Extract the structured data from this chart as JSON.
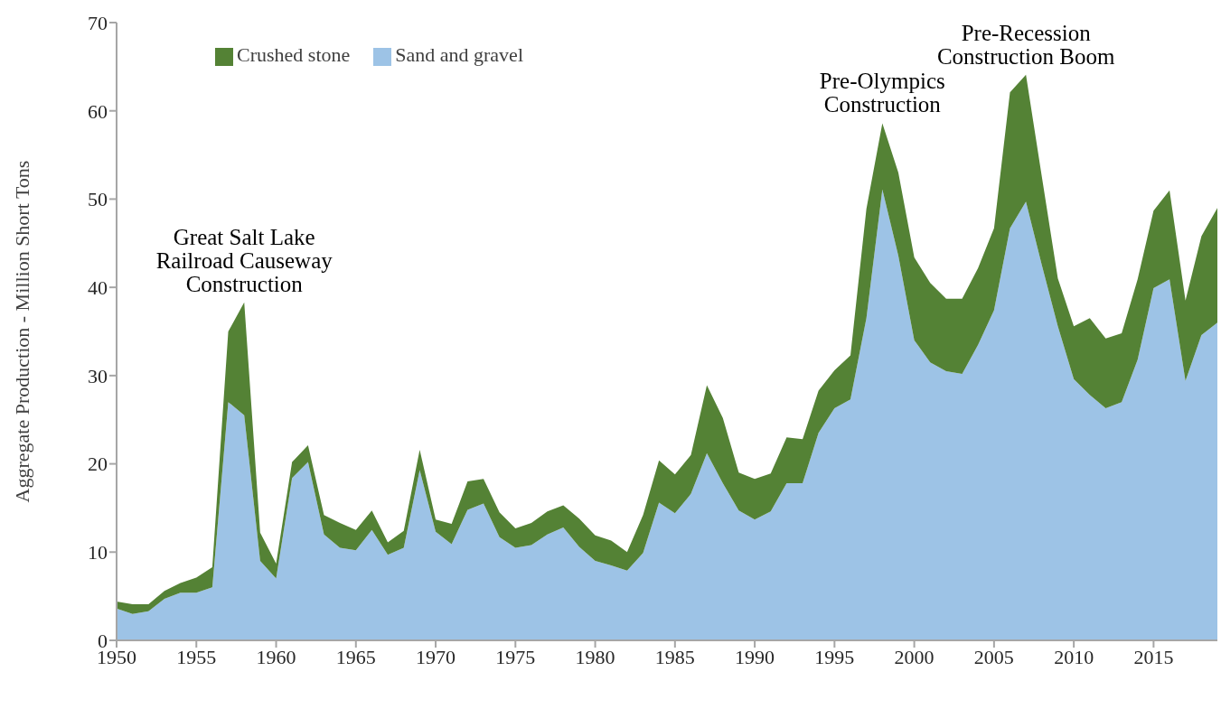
{
  "chart_data": {
    "type": "area",
    "stacked": true,
    "ylabel": "Aggregate Production - Million Short Tons",
    "x": [
      1950,
      1951,
      1952,
      1953,
      1954,
      1955,
      1956,
      1957,
      1958,
      1959,
      1960,
      1961,
      1962,
      1963,
      1964,
      1965,
      1966,
      1967,
      1968,
      1969,
      1970,
      1971,
      1972,
      1973,
      1974,
      1975,
      1976,
      1977,
      1978,
      1979,
      1980,
      1981,
      1982,
      1983,
      1984,
      1985,
      1986,
      1987,
      1988,
      1989,
      1990,
      1991,
      1992,
      1993,
      1994,
      1995,
      1996,
      1997,
      1998,
      1999,
      2000,
      2001,
      2002,
      2003,
      2004,
      2005,
      2006,
      2007,
      2008,
      2009,
      2010,
      2011,
      2012,
      2013,
      2014,
      2015,
      2016,
      2017,
      2018,
      2019
    ],
    "series": [
      {
        "name": "Sand and gravel",
        "color": "#9dc3e6",
        "values": [
          3.6,
          3.0,
          3.3,
          4.7,
          5.4,
          5.4,
          6.0,
          27.0,
          25.5,
          9.0,
          7.0,
          18.4,
          20.2,
          12.0,
          10.5,
          10.2,
          12.5,
          9.7,
          10.5,
          19.3,
          12.3,
          10.9,
          14.8,
          15.5,
          11.7,
          10.5,
          10.8,
          12.0,
          12.8,
          10.6,
          9.0,
          8.5,
          7.9,
          9.9,
          15.6,
          14.4,
          16.6,
          21.2,
          17.8,
          14.7,
          13.7,
          14.6,
          17.8,
          17.8,
          23.5,
          26.3,
          27.3,
          36.5,
          51.1,
          43.6,
          34.0,
          31.5,
          30.5,
          30.2,
          33.5,
          37.4,
          46.7,
          49.7,
          42.5,
          35.6,
          29.6,
          27.8,
          26.3,
          27.0,
          31.8,
          39.9,
          40.9,
          29.4,
          34.6,
          36.0
        ]
      },
      {
        "name": "Crushed stone",
        "color": "#548235",
        "values": [
          0.8,
          1.1,
          0.8,
          0.9,
          1.1,
          1.7,
          2.3,
          8.0,
          12.8,
          3.2,
          1.7,
          1.8,
          1.9,
          2.2,
          2.8,
          2.3,
          2.2,
          1.4,
          1.9,
          2.3,
          1.4,
          2.3,
          3.2,
          2.8,
          2.8,
          2.2,
          2.5,
          2.6,
          2.5,
          3.2,
          2.9,
          2.8,
          2.1,
          4.3,
          4.8,
          4.4,
          4.4,
          7.7,
          7.4,
          4.3,
          4.6,
          4.3,
          5.2,
          5.0,
          4.8,
          4.3,
          5.0,
          12.4,
          7.5,
          9.4,
          9.4,
          9.0,
          8.2,
          8.5,
          8.7,
          9.3,
          15.4,
          14.4,
          10.0,
          5.4,
          6.0,
          8.7,
          7.9,
          7.8,
          9.1,
          8.8,
          10.1,
          9.1,
          11.2,
          13.0
        ]
      }
    ],
    "xlim": [
      1950,
      2019
    ],
    "xticks": [
      1950,
      1955,
      1960,
      1965,
      1970,
      1975,
      1980,
      1985,
      1990,
      1995,
      2000,
      2005,
      2010,
      2015
    ],
    "ylim": [
      0,
      70
    ],
    "yticks": [
      0,
      10,
      20,
      30,
      40,
      50,
      60,
      70
    ],
    "grid": false,
    "legend": "top left",
    "annotations": [
      {
        "text": "Great Salt Lake Railroad Causeway Construction",
        "x": 1958,
        "y": 38.3
      },
      {
        "text": "Pre-Olympics Construction",
        "x": 1998,
        "y": 58.6
      },
      {
        "text": "Pre-Recession Construction Boom",
        "x": 2007,
        "y": 64.1
      }
    ]
  }
}
